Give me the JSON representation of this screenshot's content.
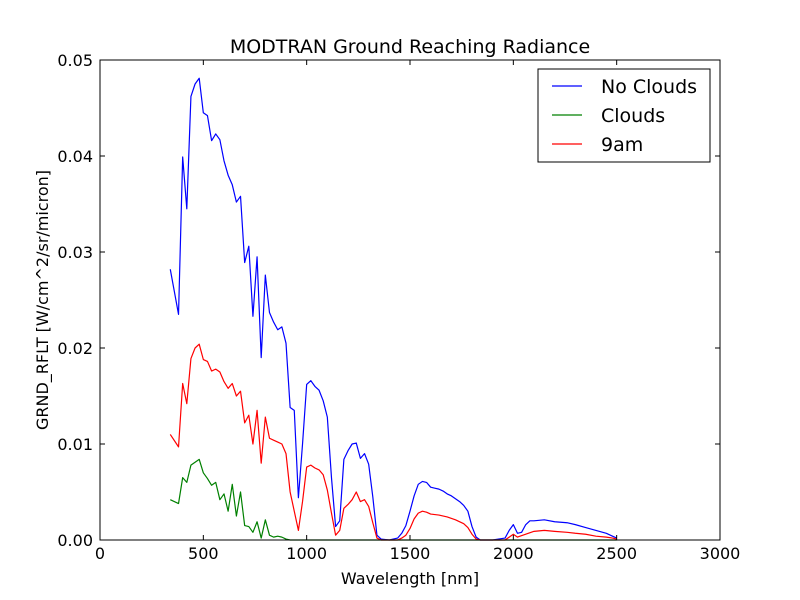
{
  "chart_data": {
    "type": "line",
    "title": "MODTRAN Ground Reaching Radiance",
    "xlabel": "Wavelength [nm]",
    "ylabel": "GRND_RFLT [W/cm^2/sr/micron]",
    "xlim": [
      0,
      3000
    ],
    "ylim": [
      0,
      0.05
    ],
    "xticks": [
      0,
      500,
      1000,
      1500,
      2000,
      2500,
      3000
    ],
    "xtick_labels": [
      "0",
      "500",
      "1000",
      "1500",
      "2000",
      "2500",
      "3000"
    ],
    "yticks": [
      0,
      0.01,
      0.02,
      0.03,
      0.04,
      0.05
    ],
    "ytick_labels": [
      "0.00",
      "0.01",
      "0.02",
      "0.03",
      "0.04",
      "0.05"
    ],
    "grid": false,
    "legend_position": "top-right",
    "series": [
      {
        "name": "No Clouds",
        "color": "#0000ff",
        "points": [
          [
            340,
            0.0282
          ],
          [
            380,
            0.0235
          ],
          [
            400,
            0.0399
          ],
          [
            420,
            0.0345
          ],
          [
            440,
            0.0462
          ],
          [
            460,
            0.0475
          ],
          [
            480,
            0.0481
          ],
          [
            500,
            0.0445
          ],
          [
            520,
            0.0442
          ],
          [
            540,
            0.0416
          ],
          [
            560,
            0.0423
          ],
          [
            580,
            0.0417
          ],
          [
            600,
            0.0395
          ],
          [
            620,
            0.038
          ],
          [
            640,
            0.037
          ],
          [
            660,
            0.0352
          ],
          [
            680,
            0.0358
          ],
          [
            700,
            0.0289
          ],
          [
            720,
            0.0306
          ],
          [
            740,
            0.0233
          ],
          [
            760,
            0.0295
          ],
          [
            780,
            0.019
          ],
          [
            800,
            0.0276
          ],
          [
            820,
            0.0237
          ],
          [
            840,
            0.0227
          ],
          [
            860,
            0.0219
          ],
          [
            880,
            0.0222
          ],
          [
            900,
            0.0205
          ],
          [
            920,
            0.0138
          ],
          [
            940,
            0.0135
          ],
          [
            960,
            0.0044
          ],
          [
            980,
            0.01
          ],
          [
            1000,
            0.0162
          ],
          [
            1020,
            0.0166
          ],
          [
            1040,
            0.016
          ],
          [
            1060,
            0.0156
          ],
          [
            1080,
            0.0145
          ],
          [
            1100,
            0.0128
          ],
          [
            1120,
            0.0065
          ],
          [
            1140,
            0.0014
          ],
          [
            1160,
            0.002
          ],
          [
            1180,
            0.0084
          ],
          [
            1200,
            0.0093
          ],
          [
            1220,
            0.01
          ],
          [
            1240,
            0.0101
          ],
          [
            1260,
            0.0085
          ],
          [
            1280,
            0.009
          ],
          [
            1300,
            0.0079
          ],
          [
            1320,
            0.0045
          ],
          [
            1340,
            0.0005
          ],
          [
            1360,
            0.0001
          ],
          [
            1400,
            0.0
          ],
          [
            1440,
            0.0002
          ],
          [
            1460,
            0.0007
          ],
          [
            1480,
            0.0015
          ],
          [
            1500,
            0.003
          ],
          [
            1520,
            0.0046
          ],
          [
            1540,
            0.0058
          ],
          [
            1560,
            0.0061
          ],
          [
            1580,
            0.006
          ],
          [
            1600,
            0.0055
          ],
          [
            1620,
            0.0054
          ],
          [
            1640,
            0.0053
          ],
          [
            1660,
            0.0051
          ],
          [
            1680,
            0.0048
          ],
          [
            1700,
            0.0046
          ],
          [
            1720,
            0.0043
          ],
          [
            1740,
            0.004
          ],
          [
            1760,
            0.0036
          ],
          [
            1780,
            0.003
          ],
          [
            1800,
            0.0014
          ],
          [
            1820,
            0.0003
          ],
          [
            1840,
            0.0
          ],
          [
            1900,
            0.0
          ],
          [
            1960,
            0.0002
          ],
          [
            1980,
            0.001
          ],
          [
            2000,
            0.0016
          ],
          [
            2020,
            0.0007
          ],
          [
            2040,
            0.0008
          ],
          [
            2060,
            0.0016
          ],
          [
            2080,
            0.002
          ],
          [
            2100,
            0.002
          ],
          [
            2150,
            0.0021
          ],
          [
            2200,
            0.0019
          ],
          [
            2260,
            0.0018
          ],
          [
            2300,
            0.0016
          ],
          [
            2350,
            0.0013
          ],
          [
            2400,
            0.001
          ],
          [
            2450,
            0.0007
          ],
          [
            2480,
            0.0004
          ],
          [
            2500,
            0.0002
          ]
        ]
      },
      {
        "name": "Clouds",
        "color": "#008000",
        "points": [
          [
            340,
            0.0042
          ],
          [
            380,
            0.0038
          ],
          [
            400,
            0.0065
          ],
          [
            420,
            0.006
          ],
          [
            440,
            0.0078
          ],
          [
            460,
            0.0081
          ],
          [
            480,
            0.0084
          ],
          [
            500,
            0.007
          ],
          [
            520,
            0.0064
          ],
          [
            540,
            0.0057
          ],
          [
            560,
            0.006
          ],
          [
            580,
            0.0042
          ],
          [
            600,
            0.0048
          ],
          [
            620,
            0.003
          ],
          [
            640,
            0.0058
          ],
          [
            660,
            0.0025
          ],
          [
            680,
            0.005
          ],
          [
            700,
            0.0015
          ],
          [
            720,
            0.0014
          ],
          [
            740,
            0.0008
          ],
          [
            760,
            0.0019
          ],
          [
            780,
            0.0002
          ],
          [
            800,
            0.0021
          ],
          [
            820,
            0.0005
          ],
          [
            840,
            0.0003
          ],
          [
            860,
            0.0004
          ],
          [
            880,
            0.0003
          ],
          [
            900,
            0.0001
          ],
          [
            920,
            0.0
          ],
          [
            2500,
            0.0
          ]
        ]
      },
      {
        "name": "9am",
        "color": "#ff0000",
        "points": [
          [
            340,
            0.011
          ],
          [
            380,
            0.0097
          ],
          [
            400,
            0.0163
          ],
          [
            420,
            0.0142
          ],
          [
            440,
            0.0189
          ],
          [
            460,
            0.02
          ],
          [
            480,
            0.0204
          ],
          [
            500,
            0.0188
          ],
          [
            520,
            0.0186
          ],
          [
            540,
            0.0176
          ],
          [
            560,
            0.0178
          ],
          [
            580,
            0.0175
          ],
          [
            600,
            0.0165
          ],
          [
            620,
            0.0158
          ],
          [
            640,
            0.0163
          ],
          [
            660,
            0.015
          ],
          [
            680,
            0.0155
          ],
          [
            700,
            0.0122
          ],
          [
            720,
            0.013
          ],
          [
            740,
            0.01
          ],
          [
            760,
            0.0135
          ],
          [
            780,
            0.008
          ],
          [
            800,
            0.0128
          ],
          [
            820,
            0.0106
          ],
          [
            840,
            0.0104
          ],
          [
            860,
            0.0102
          ],
          [
            880,
            0.01
          ],
          [
            900,
            0.009
          ],
          [
            920,
            0.005
          ],
          [
            940,
            0.003
          ],
          [
            960,
            0.001
          ],
          [
            980,
            0.004
          ],
          [
            1000,
            0.0076
          ],
          [
            1020,
            0.0078
          ],
          [
            1040,
            0.0075
          ],
          [
            1060,
            0.0073
          ],
          [
            1080,
            0.0068
          ],
          [
            1100,
            0.0052
          ],
          [
            1120,
            0.0028
          ],
          [
            1140,
            0.0005
          ],
          [
            1160,
            0.001
          ],
          [
            1180,
            0.0033
          ],
          [
            1200,
            0.0037
          ],
          [
            1220,
            0.0042
          ],
          [
            1240,
            0.005
          ],
          [
            1260,
            0.004
          ],
          [
            1280,
            0.0042
          ],
          [
            1300,
            0.0035
          ],
          [
            1320,
            0.0018
          ],
          [
            1340,
            0.0002
          ],
          [
            1360,
            0.0
          ],
          [
            1440,
            0.0
          ],
          [
            1460,
            0.0002
          ],
          [
            1480,
            0.0005
          ],
          [
            1500,
            0.0012
          ],
          [
            1520,
            0.0022
          ],
          [
            1540,
            0.0028
          ],
          [
            1560,
            0.003
          ],
          [
            1580,
            0.0029
          ],
          [
            1600,
            0.0027
          ],
          [
            1640,
            0.0026
          ],
          [
            1680,
            0.0024
          ],
          [
            1720,
            0.0021
          ],
          [
            1760,
            0.0017
          ],
          [
            1780,
            0.0013
          ],
          [
            1800,
            0.0006
          ],
          [
            1820,
            0.0001
          ],
          [
            1840,
            0.0
          ],
          [
            1960,
            0.0
          ],
          [
            1980,
            0.0003
          ],
          [
            2000,
            0.0006
          ],
          [
            2020,
            0.0003
          ],
          [
            2060,
            0.0006
          ],
          [
            2100,
            0.0009
          ],
          [
            2150,
            0.001
          ],
          [
            2200,
            0.0009
          ],
          [
            2260,
            0.0008
          ],
          [
            2300,
            0.0007
          ],
          [
            2350,
            0.0006
          ],
          [
            2400,
            0.0004
          ],
          [
            2450,
            0.0003
          ],
          [
            2480,
            0.0002
          ],
          [
            2500,
            0.0001
          ]
        ]
      }
    ]
  }
}
